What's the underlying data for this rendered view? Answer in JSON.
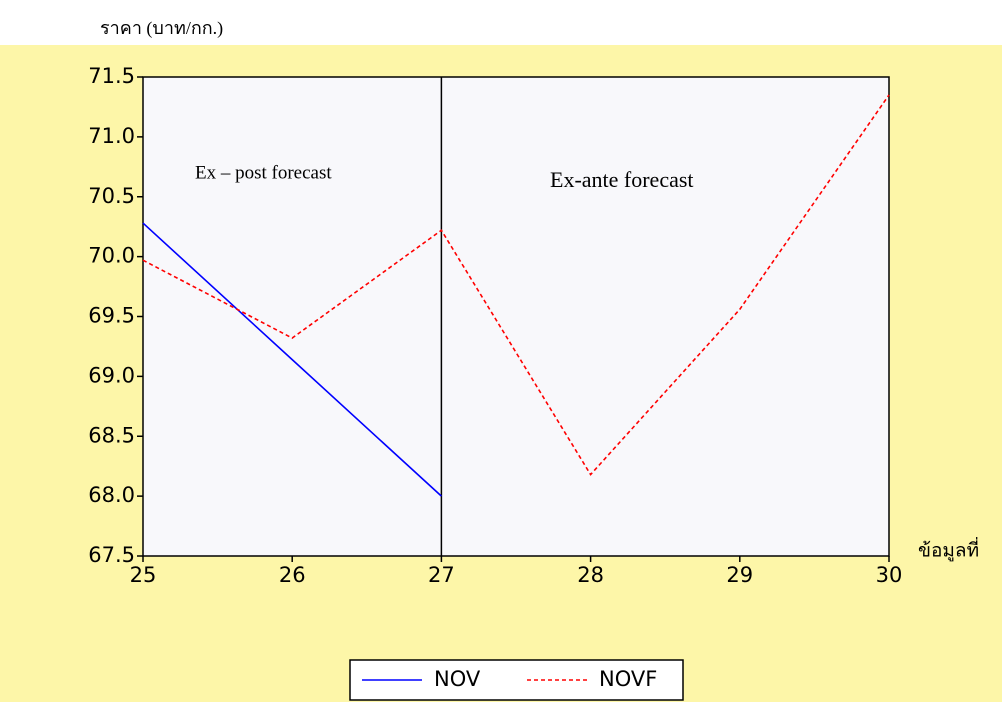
{
  "chart_data": {
    "type": "line",
    "ylabel": "ราคา (บาท/กก.)",
    "xlabel": "ข้อมูลที่",
    "annotations": [
      "Ex – post forecast",
      "Ex-ante forecast"
    ],
    "x": [
      25,
      26,
      27,
      28,
      29,
      30
    ],
    "series": [
      {
        "name": "NOV",
        "color": "#0000ff",
        "dash": false,
        "values": [
          70.28,
          69.14,
          68.0,
          null,
          null,
          null
        ]
      },
      {
        "name": "NOVF",
        "color": "#ff0000",
        "dash": true,
        "values": [
          69.97,
          69.32,
          70.22,
          68.18,
          69.56,
          71.35
        ]
      }
    ],
    "xlim": [
      25,
      30
    ],
    "xticks": [
      25,
      26,
      27,
      28,
      29,
      30
    ],
    "ylim": [
      67.5,
      71.5
    ],
    "yticks": [
      67.5,
      {
        "value": 68,
        "label": "68.0"
      },
      68.5,
      {
        "value": 69,
        "label": "69.0"
      },
      69.5,
      {
        "value": 70,
        "label": "70.0"
      },
      70.5,
      {
        "value": 71,
        "label": "71.0"
      },
      71.5
    ]
  }
}
